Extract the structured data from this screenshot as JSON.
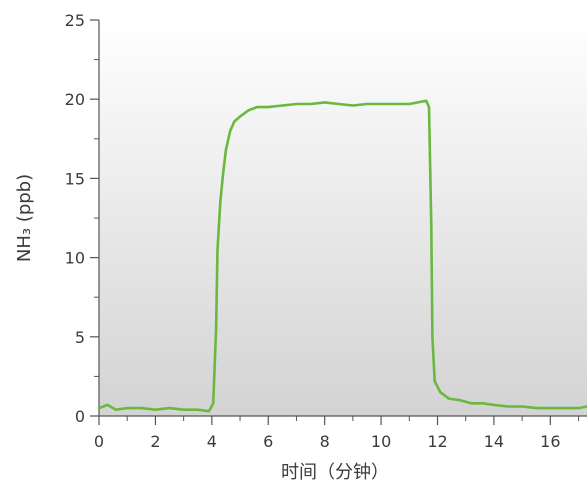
{
  "chart_data": {
    "type": "line",
    "xlabel": "时间（分钟）",
    "ylabel": "NH₃ (ppb)",
    "xlim": [
      0,
      17.3
    ],
    "ylim": [
      0,
      25
    ],
    "x_ticks": [
      "0",
      "2",
      "4",
      "6",
      "8",
      "10",
      "12",
      "14",
      "16"
    ],
    "y_ticks": [
      "0",
      "5",
      "10",
      "15",
      "20",
      "25"
    ],
    "grid": false,
    "background": "gradient-white-to-gray",
    "series": [
      {
        "color": "#6bb83f",
        "x": [
          0,
          0.3,
          0.6,
          1.0,
          1.5,
          2.0,
          2.5,
          3.0,
          3.5,
          3.9,
          4.05,
          4.15,
          4.2,
          4.3,
          4.4,
          4.5,
          4.65,
          4.8,
          5.0,
          5.3,
          5.6,
          6.0,
          6.5,
          7.0,
          7.5,
          8.0,
          8.5,
          9.0,
          9.5,
          10.0,
          10.5,
          11.0,
          11.3,
          11.6,
          11.7,
          11.78,
          11.82,
          11.9,
          12.1,
          12.4,
          12.8,
          13.2,
          13.6,
          14.0,
          14.5,
          15.0,
          15.5,
          16.0,
          16.5,
          17.0,
          17.3
        ],
        "y": [
          0.5,
          0.7,
          0.4,
          0.5,
          0.5,
          0.4,
          0.5,
          0.4,
          0.4,
          0.3,
          0.8,
          5.5,
          10.5,
          13.5,
          15.3,
          16.8,
          18.0,
          18.6,
          18.9,
          19.3,
          19.5,
          19.5,
          19.6,
          19.7,
          19.7,
          19.8,
          19.7,
          19.6,
          19.7,
          19.7,
          19.7,
          19.7,
          19.8,
          19.9,
          19.5,
          12.0,
          5.0,
          2.2,
          1.5,
          1.1,
          1.0,
          0.8,
          0.8,
          0.7,
          0.6,
          0.6,
          0.5,
          0.5,
          0.5,
          0.5,
          0.6
        ]
      }
    ]
  }
}
